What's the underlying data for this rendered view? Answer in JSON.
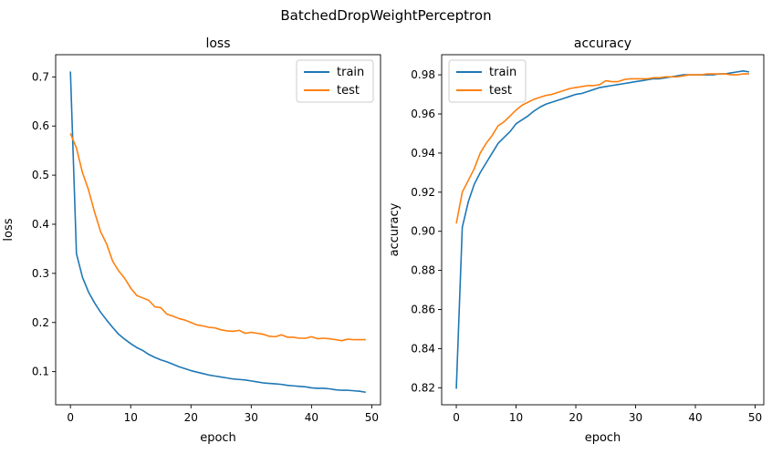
{
  "figure": {
    "suptitle": "BatchedDropWeightPerceptron"
  },
  "colors": {
    "train": "#1f77b4",
    "test": "#ff7f0e",
    "axis": "#000000"
  },
  "chart_data": [
    {
      "type": "line",
      "title": "loss",
      "xlabel": "epoch",
      "ylabel": "loss",
      "xlim": [
        -2.45,
        51.45
      ],
      "ylim": [
        0.0325,
        0.7452
      ],
      "xticks": [
        0,
        10,
        20,
        30,
        40,
        50
      ],
      "yticks": [
        0.1,
        0.2,
        0.3,
        0.4,
        0.5,
        0.6,
        0.7
      ],
      "ytick_labels": [
        "0.1",
        "0.2",
        "0.3",
        "0.4",
        "0.5",
        "0.6",
        "0.7"
      ],
      "legend": "top-right",
      "grid": false,
      "x": [
        0,
        1,
        2,
        3,
        4,
        5,
        6,
        7,
        8,
        9,
        10,
        11,
        12,
        13,
        14,
        15,
        16,
        17,
        18,
        19,
        20,
        21,
        22,
        23,
        24,
        25,
        26,
        27,
        28,
        29,
        30,
        31,
        32,
        33,
        34,
        35,
        36,
        37,
        38,
        39,
        40,
        41,
        42,
        43,
        44,
        45,
        46,
        47,
        48,
        49
      ],
      "series": [
        {
          "name": "train",
          "color": "#1f77b4",
          "values": [
            0.711,
            0.34,
            0.292,
            0.262,
            0.24,
            0.221,
            0.205,
            0.19,
            0.176,
            0.166,
            0.157,
            0.149,
            0.143,
            0.135,
            0.129,
            0.124,
            0.12,
            0.115,
            0.11,
            0.106,
            0.102,
            0.099,
            0.096,
            0.093,
            0.091,
            0.089,
            0.087,
            0.085,
            0.084,
            0.083,
            0.081,
            0.079,
            0.077,
            0.076,
            0.075,
            0.074,
            0.072,
            0.071,
            0.07,
            0.069,
            0.067,
            0.066,
            0.066,
            0.065,
            0.063,
            0.062,
            0.062,
            0.061,
            0.06,
            0.058
          ]
        },
        {
          "name": "test",
          "color": "#ff7f0e",
          "values": [
            0.585,
            0.555,
            0.505,
            0.47,
            0.425,
            0.385,
            0.36,
            0.325,
            0.305,
            0.29,
            0.27,
            0.255,
            0.25,
            0.245,
            0.232,
            0.23,
            0.217,
            0.213,
            0.208,
            0.205,
            0.2,
            0.195,
            0.193,
            0.19,
            0.189,
            0.185,
            0.183,
            0.182,
            0.184,
            0.178,
            0.18,
            0.178,
            0.176,
            0.172,
            0.171,
            0.175,
            0.17,
            0.17,
            0.168,
            0.168,
            0.171,
            0.167,
            0.168,
            0.167,
            0.165,
            0.163,
            0.166,
            0.165,
            0.165,
            0.165
          ]
        }
      ]
    },
    {
      "type": "line",
      "title": "accuracy",
      "xlabel": "epoch",
      "ylabel": "accuracy",
      "xlim": [
        -2.45,
        51.45
      ],
      "ylim": [
        0.8113,
        0.9903
      ],
      "xticks": [
        0,
        10,
        20,
        30,
        40,
        50
      ],
      "yticks": [
        0.82,
        0.84,
        0.86,
        0.88,
        0.9,
        0.92,
        0.94,
        0.96,
        0.98
      ],
      "ytick_labels": [
        "0.82",
        "0.84",
        "0.86",
        "0.88",
        "0.90",
        "0.92",
        "0.94",
        "0.96",
        "0.98"
      ],
      "legend": "top-left",
      "grid": false,
      "x": [
        0,
        1,
        2,
        3,
        4,
        5,
        6,
        7,
        8,
        9,
        10,
        11,
        12,
        13,
        14,
        15,
        16,
        17,
        18,
        19,
        20,
        21,
        22,
        23,
        24,
        25,
        26,
        27,
        28,
        29,
        30,
        31,
        32,
        33,
        34,
        35,
        36,
        37,
        38,
        39,
        40,
        41,
        42,
        43,
        44,
        45,
        46,
        47,
        48,
        49
      ],
      "series": [
        {
          "name": "train",
          "color": "#1f77b4",
          "values": [
            0.8195,
            0.902,
            0.915,
            0.924,
            0.93,
            0.935,
            0.94,
            0.945,
            0.948,
            0.951,
            0.955,
            0.957,
            0.959,
            0.9615,
            0.9635,
            0.965,
            0.966,
            0.967,
            0.968,
            0.969,
            0.97,
            0.9705,
            0.9715,
            0.9725,
            0.9735,
            0.974,
            0.9745,
            0.975,
            0.9755,
            0.976,
            0.9765,
            0.977,
            0.9775,
            0.978,
            0.978,
            0.9785,
            0.979,
            0.9795,
            0.98,
            0.98,
            0.98,
            0.98,
            0.98,
            0.98,
            0.9805,
            0.9805,
            0.981,
            0.9815,
            0.982,
            0.9815
          ]
        },
        {
          "name": "test",
          "color": "#ff7f0e",
          "values": [
            0.904,
            0.92,
            0.926,
            0.932,
            0.94,
            0.945,
            0.949,
            0.954,
            0.956,
            0.959,
            0.962,
            0.9645,
            0.966,
            0.9675,
            0.9685,
            0.9695,
            0.97,
            0.971,
            0.972,
            0.973,
            0.9735,
            0.974,
            0.9745,
            0.9745,
            0.975,
            0.977,
            0.9765,
            0.9765,
            0.9775,
            0.978,
            0.978,
            0.978,
            0.978,
            0.9785,
            0.9785,
            0.979,
            0.979,
            0.979,
            0.9795,
            0.98,
            0.98,
            0.98,
            0.9805,
            0.9805,
            0.9805,
            0.9805,
            0.98,
            0.98,
            0.9805,
            0.9805
          ]
        }
      ]
    }
  ]
}
